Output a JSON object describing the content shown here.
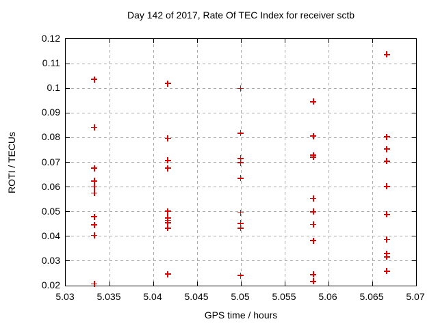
{
  "chart_data": {
    "type": "scatter",
    "title": "Day 142 of 2017, Rate Of TEC Index for receiver sctb",
    "xlabel": "GPS time / hours",
    "ylabel": "ROTI / TECUs",
    "xlim": [
      5.03,
      5.07
    ],
    "ylim": [
      0.02,
      0.12
    ],
    "x_ticks": [
      5.03,
      5.035,
      5.04,
      5.045,
      5.05,
      5.055,
      5.06,
      5.065,
      5.07
    ],
    "x_tick_labels": [
      "5.03",
      "5.035",
      "5.04",
      "5.045",
      "5.05",
      "5.055",
      "5.06",
      "5.065",
      "5.07"
    ],
    "y_ticks": [
      0.02,
      0.03,
      0.04,
      0.05,
      0.06,
      0.07,
      0.08,
      0.09,
      0.1,
      0.11,
      0.12
    ],
    "y_tick_labels": [
      "0.02",
      "0.03",
      "0.04",
      "0.05",
      "0.06",
      "0.07",
      "0.08",
      "0.09",
      "0.1",
      "0.11",
      "0.12"
    ],
    "grid": true,
    "legend": "none",
    "marker": "plus",
    "marker_color": "#e00000",
    "grid_color": "#a9a9a9",
    "series": [
      {
        "name": "ROTI",
        "points": [
          [
            5.0333,
            0.1035
          ],
          [
            5.0333,
            0.084
          ],
          [
            5.0333,
            0.0675
          ],
          [
            5.0333,
            0.0623
          ],
          [
            5.0333,
            0.0599
          ],
          [
            5.0333,
            0.0574
          ],
          [
            5.0333,
            0.0478
          ],
          [
            5.0333,
            0.0445
          ],
          [
            5.0333,
            0.0402
          ],
          [
            5.0333,
            0.0206
          ],
          [
            5.0417,
            0.1018
          ],
          [
            5.0417,
            0.0795
          ],
          [
            5.0417,
            0.0706
          ],
          [
            5.0417,
            0.0675
          ],
          [
            5.0417,
            0.05
          ],
          [
            5.0417,
            0.0473
          ],
          [
            5.0417,
            0.0463
          ],
          [
            5.0417,
            0.0454
          ],
          [
            5.0417,
            0.0432
          ],
          [
            5.0417,
            0.0245
          ],
          [
            5.05,
            0.0998
          ],
          [
            5.05,
            0.0817
          ],
          [
            5.05,
            0.0714
          ],
          [
            5.05,
            0.0697
          ],
          [
            5.05,
            0.0634
          ],
          [
            5.05,
            0.0494
          ],
          [
            5.05,
            0.0451
          ],
          [
            5.05,
            0.0432
          ],
          [
            5.05,
            0.024
          ],
          [
            5.0583,
            0.0944
          ],
          [
            5.0583,
            0.0805
          ],
          [
            5.0583,
            0.0727
          ],
          [
            5.0583,
            0.072
          ],
          [
            5.0583,
            0.0552
          ],
          [
            5.0583,
            0.0498
          ],
          [
            5.0583,
            0.0446
          ],
          [
            5.0583,
            0.0381
          ],
          [
            5.0583,
            0.0243
          ],
          [
            5.0583,
            0.0216
          ],
          [
            5.0667,
            0.1135
          ],
          [
            5.0667,
            0.0802
          ],
          [
            5.0667,
            0.0752
          ],
          [
            5.0667,
            0.0703
          ],
          [
            5.0667,
            0.0601
          ],
          [
            5.0667,
            0.0487
          ],
          [
            5.0667,
            0.0386
          ],
          [
            5.0667,
            0.0328
          ],
          [
            5.0667,
            0.0315
          ],
          [
            5.0667,
            0.0257
          ]
        ]
      }
    ]
  }
}
